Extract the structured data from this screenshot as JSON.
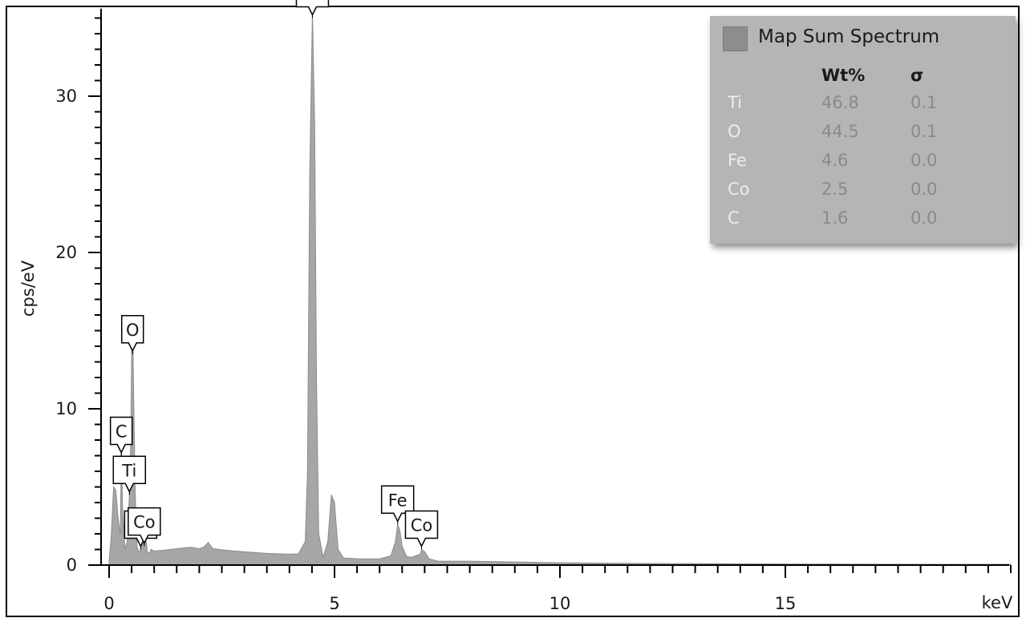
{
  "chart_data": {
    "type": "area",
    "title": "",
    "xlabel": "keV",
    "ylabel": "cps/eV",
    "xlim": [
      -0.1,
      20.0
    ],
    "ylim": [
      0,
      35.5
    ],
    "x_ticks": [
      0,
      5,
      10,
      15
    ],
    "y_ticks": [
      0,
      10,
      20,
      30
    ],
    "grid": false,
    "series": [
      {
        "name": "Map Sum Spectrum",
        "color": "#a6a6a6",
        "x": [
          0.0,
          0.05,
          0.1,
          0.15,
          0.2,
          0.25,
          0.27,
          0.3,
          0.35,
          0.4,
          0.45,
          0.48,
          0.5,
          0.52,
          0.55,
          0.58,
          0.62,
          0.66,
          0.7,
          0.72,
          0.75,
          0.78,
          0.8,
          0.85,
          0.9,
          0.93,
          1.0,
          1.2,
          1.5,
          1.8,
          2.0,
          2.1,
          2.2,
          2.3,
          2.6,
          3.0,
          3.5,
          4.0,
          4.2,
          4.35,
          4.4,
          4.45,
          4.51,
          4.56,
          4.6,
          4.65,
          4.75,
          4.85,
          4.93,
          5.0,
          5.08,
          5.2,
          5.6,
          6.0,
          6.25,
          6.35,
          6.4,
          6.45,
          6.5,
          6.6,
          6.7,
          6.8,
          6.9,
          6.93,
          7.0,
          7.1,
          7.3,
          7.6,
          8.0,
          9.0,
          10.0,
          12.0,
          14.0,
          16.0,
          18.0,
          20.0
        ],
        "y": [
          0.2,
          2.0,
          5.0,
          4.8,
          3.0,
          2.0,
          8.0,
          3.5,
          1.0,
          1.5,
          4.5,
          8.0,
          13.5,
          16.0,
          10.0,
          4.5,
          1.2,
          0.8,
          1.0,
          2.0,
          1.5,
          3.6,
          2.0,
          0.8,
          0.8,
          1.0,
          0.9,
          0.95,
          1.05,
          1.15,
          1.05,
          1.15,
          1.45,
          1.05,
          0.95,
          0.85,
          0.75,
          0.7,
          0.72,
          1.5,
          6.0,
          25.0,
          35.5,
          28.0,
          12.0,
          2.0,
          0.5,
          1.5,
          4.5,
          4.0,
          1.0,
          0.45,
          0.4,
          0.4,
          0.6,
          1.5,
          2.6,
          2.2,
          1.2,
          0.55,
          0.5,
          0.6,
          0.7,
          1.0,
          0.85,
          0.4,
          0.25,
          0.25,
          0.25,
          0.2,
          0.15,
          0.1,
          0.08,
          0.06,
          0.05,
          0.05
        ]
      }
    ],
    "peak_labels": [
      {
        "text": "Ti",
        "x": 4.51,
        "y": 35.0
      },
      {
        "text": "O",
        "x": 0.52,
        "y": 13.5
      },
      {
        "text": "Ti",
        "x": 0.45,
        "y": 4.5
      },
      {
        "text": "C",
        "x": 0.27,
        "y": 7.0
      },
      {
        "text": "Fe",
        "x": 0.7,
        "y": 1.0
      },
      {
        "text": "Co",
        "x": 0.78,
        "y": 1.2
      },
      {
        "text": "Fe",
        "x": 6.4,
        "y": 2.6
      },
      {
        "text": "Co",
        "x": 6.93,
        "y": 1.0
      }
    ],
    "legend": {
      "placement": "top-right",
      "title": "Map Sum Spectrum",
      "col_wt": "Wt%",
      "col_sigma": "σ",
      "rows": [
        {
          "element": "Ti",
          "wt": "46.8",
          "sigma": "0.1"
        },
        {
          "element": "O",
          "wt": "44.5",
          "sigma": "0.1"
        },
        {
          "element": "Fe",
          "wt": "4.6",
          "sigma": "0.0"
        },
        {
          "element": "Co",
          "wt": "2.5",
          "sigma": "0.0"
        },
        {
          "element": "C",
          "wt": "1.6",
          "sigma": "0.0"
        }
      ]
    }
  }
}
